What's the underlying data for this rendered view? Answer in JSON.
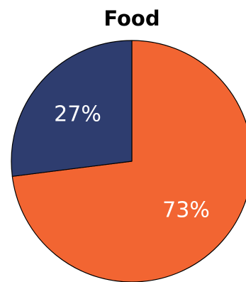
{
  "chart_data": {
    "type": "pie",
    "title": "Food",
    "slices": [
      {
        "label": "73%",
        "value": 73,
        "color": "#f26532"
      },
      {
        "label": "27%",
        "value": 27,
        "color": "#2e3d6f"
      }
    ],
    "start_angle_deg": 0,
    "direction": "clockwise",
    "edge_color": "#000000",
    "legend": "none"
  }
}
